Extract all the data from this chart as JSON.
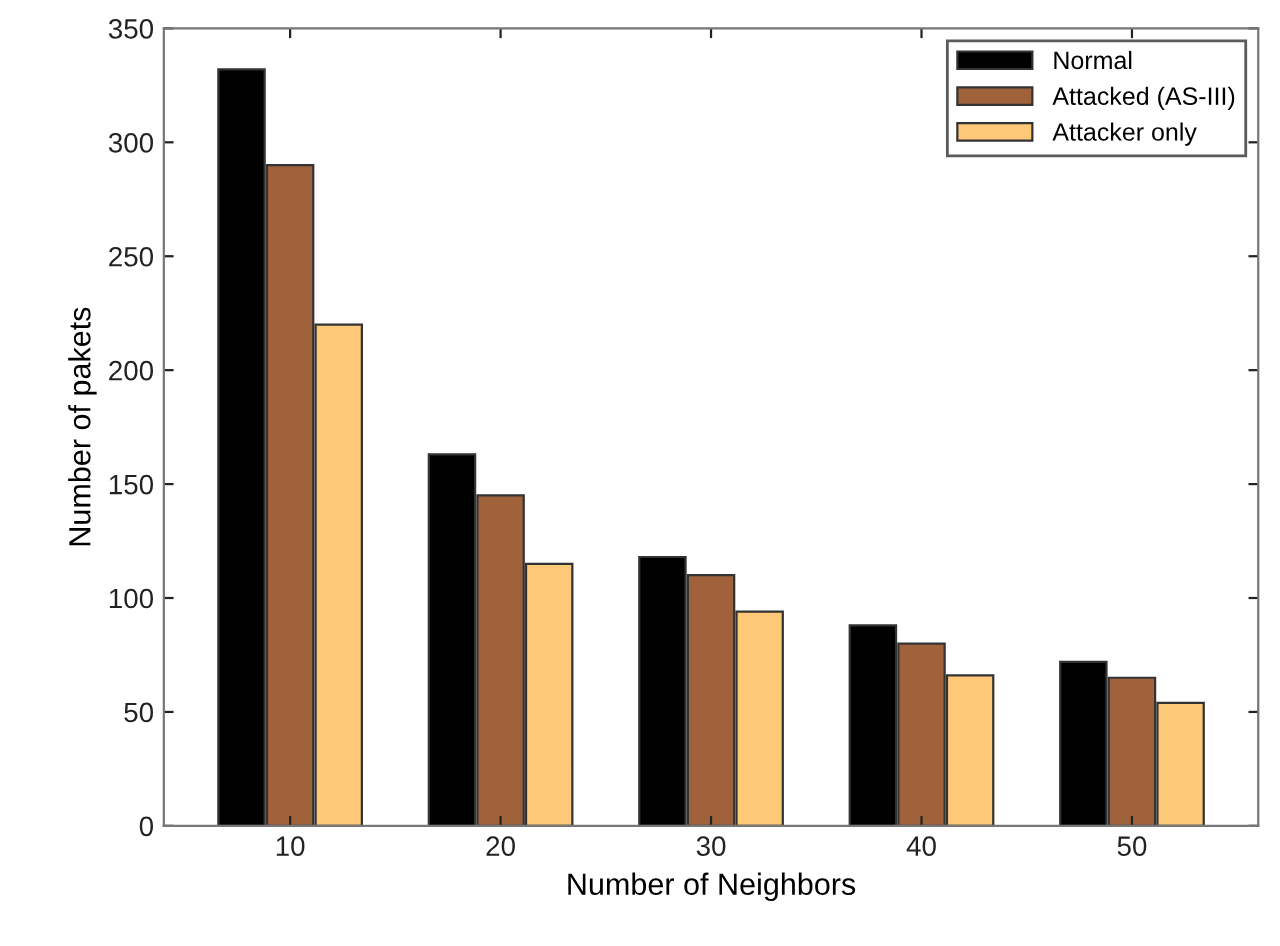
{
  "chart_data": {
    "type": "bar",
    "xlabel": "Number of Neighbors",
    "ylabel": "Number of pakets",
    "categories": [
      "10",
      "20",
      "30",
      "40",
      "50"
    ],
    "series": [
      {
        "name": "Normal",
        "color": "#000000",
        "values": [
          332,
          163,
          118,
          88,
          72
        ]
      },
      {
        "name": "Attacked (AS-III)",
        "color": "#a0623a",
        "values": [
          290,
          145,
          110,
          80,
          65
        ]
      },
      {
        "name": "Attacker only",
        "color": "#fdc878",
        "values": [
          220,
          115,
          94,
          66,
          54
        ]
      }
    ],
    "ylim": [
      0,
      350
    ],
    "yticks": [
      0,
      50,
      100,
      150,
      200,
      250,
      300,
      350
    ],
    "grid": false,
    "legend": "top right"
  }
}
